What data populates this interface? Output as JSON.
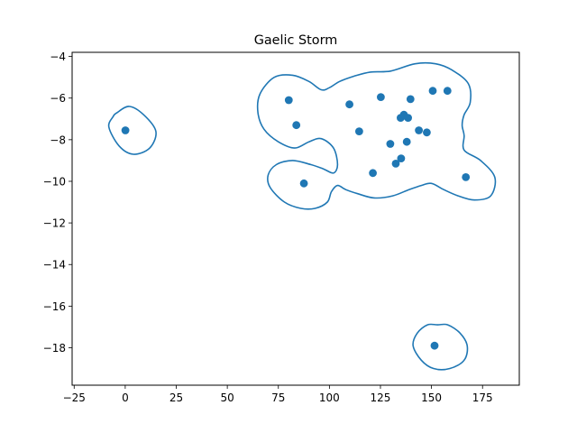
{
  "chart_data": {
    "type": "scatter",
    "title": "Gaelic Storm",
    "xlabel": "",
    "ylabel": "",
    "xlim": [
      -26,
      193
    ],
    "ylim": [
      -19.8,
      -3.8
    ],
    "x_ticks": [
      -25,
      0,
      25,
      50,
      75,
      100,
      125,
      150,
      175
    ],
    "y_ticks": [
      -4,
      -6,
      -8,
      -10,
      -12,
      -14,
      -16,
      -18
    ],
    "x_tick_labels": [
      "−25",
      "0",
      "25",
      "50",
      "75",
      "100",
      "125",
      "150",
      "175"
    ],
    "y_tick_labels": [
      "−4",
      "−6",
      "−8",
      "−10",
      "−12",
      "−14",
      "−16",
      "−18"
    ],
    "grid": false,
    "colors": {
      "marker": "#1f77b4",
      "contour": "#1f77b4"
    },
    "points": [
      {
        "x": 0.1,
        "y": -7.55
      },
      {
        "x": 80.1,
        "y": -6.1
      },
      {
        "x": 83.8,
        "y": -7.3
      },
      {
        "x": 87.5,
        "y": -10.1
      },
      {
        "x": 109.8,
        "y": -6.3
      },
      {
        "x": 114.6,
        "y": -7.6
      },
      {
        "x": 121.3,
        "y": -9.6
      },
      {
        "x": 125.2,
        "y": -5.95
      },
      {
        "x": 129.8,
        "y": -8.2
      },
      {
        "x": 132.5,
        "y": -9.15
      },
      {
        "x": 134.9,
        "y": -6.95
      },
      {
        "x": 135.1,
        "y": -8.9
      },
      {
        "x": 136.5,
        "y": -6.8
      },
      {
        "x": 137.9,
        "y": -8.1
      },
      {
        "x": 138.5,
        "y": -6.95
      },
      {
        "x": 139.7,
        "y": -6.05
      },
      {
        "x": 143.8,
        "y": -7.55
      },
      {
        "x": 147.7,
        "y": -7.65
      },
      {
        "x": 150.6,
        "y": -5.65
      },
      {
        "x": 151.5,
        "y": -17.9
      },
      {
        "x": 157.8,
        "y": -5.65
      },
      {
        "x": 166.8,
        "y": -9.8
      }
    ],
    "contours": [
      [
        [
          -4,
          -6.7
        ],
        [
          2,
          -6.4
        ],
        [
          9,
          -6.8
        ],
        [
          15,
          -7.6
        ],
        [
          12,
          -8.4
        ],
        [
          4,
          -8.7
        ],
        [
          -3,
          -8.3
        ],
        [
          -8,
          -7.4
        ],
        [
          -6,
          -6.9
        ],
        [
          -4,
          -6.7
        ]
      ],
      [
        [
          66,
          -5.8
        ],
        [
          73,
          -5.0
        ],
        [
          82,
          -4.9
        ],
        [
          90,
          -5.2
        ],
        [
          96,
          -5.6
        ],
        [
          100,
          -5.5
        ],
        [
          105,
          -5.2
        ],
        [
          112,
          -4.95
        ],
        [
          120,
          -4.75
        ],
        [
          130,
          -4.7
        ],
        [
          142,
          -4.35
        ],
        [
          152,
          -4.35
        ],
        [
          160,
          -4.65
        ],
        [
          168,
          -5.3
        ],
        [
          169,
          -6.2
        ],
        [
          166,
          -6.8
        ],
        [
          165,
          -7.3
        ],
        [
          166,
          -7.8
        ],
        [
          166,
          -8.5
        ],
        [
          174,
          -9.0
        ],
        [
          181,
          -9.8
        ],
        [
          179,
          -10.7
        ],
        [
          171,
          -10.9
        ],
        [
          163,
          -10.7
        ],
        [
          156,
          -10.4
        ],
        [
          150,
          -10.1
        ],
        [
          145,
          -10.2
        ],
        [
          139,
          -10.4
        ],
        [
          131,
          -10.7
        ],
        [
          122,
          -10.8
        ],
        [
          114,
          -10.6
        ],
        [
          108,
          -10.4
        ],
        [
          104,
          -10.2
        ],
        [
          101,
          -10.5
        ],
        [
          99,
          -11.0
        ],
        [
          93,
          -11.3
        ],
        [
          86,
          -11.3
        ],
        [
          78,
          -11.0
        ],
        [
          71,
          -10.3
        ],
        [
          70,
          -9.7
        ],
        [
          74,
          -9.2
        ],
        [
          82,
          -9.0
        ],
        [
          91,
          -9.2
        ],
        [
          97,
          -9.4
        ],
        [
          102,
          -9.6
        ],
        [
          104,
          -9.2
        ],
        [
          102,
          -8.4
        ],
        [
          96,
          -7.95
        ],
        [
          90,
          -8.1
        ],
        [
          83,
          -8.4
        ],
        [
          75,
          -8.1
        ],
        [
          68,
          -7.5
        ],
        [
          65,
          -6.7
        ],
        [
          66,
          -5.8
        ]
      ],
      [
        [
          153,
          -16.9
        ],
        [
          158,
          -16.9
        ],
        [
          164,
          -17.3
        ],
        [
          167.5,
          -17.9
        ],
        [
          166,
          -18.6
        ],
        [
          159,
          -19.0
        ],
        [
          151,
          -19.0
        ],
        [
          145,
          -18.6
        ],
        [
          141,
          -17.9
        ],
        [
          143,
          -17.3
        ],
        [
          148,
          -16.9
        ],
        [
          153,
          -16.9
        ]
      ]
    ]
  }
}
